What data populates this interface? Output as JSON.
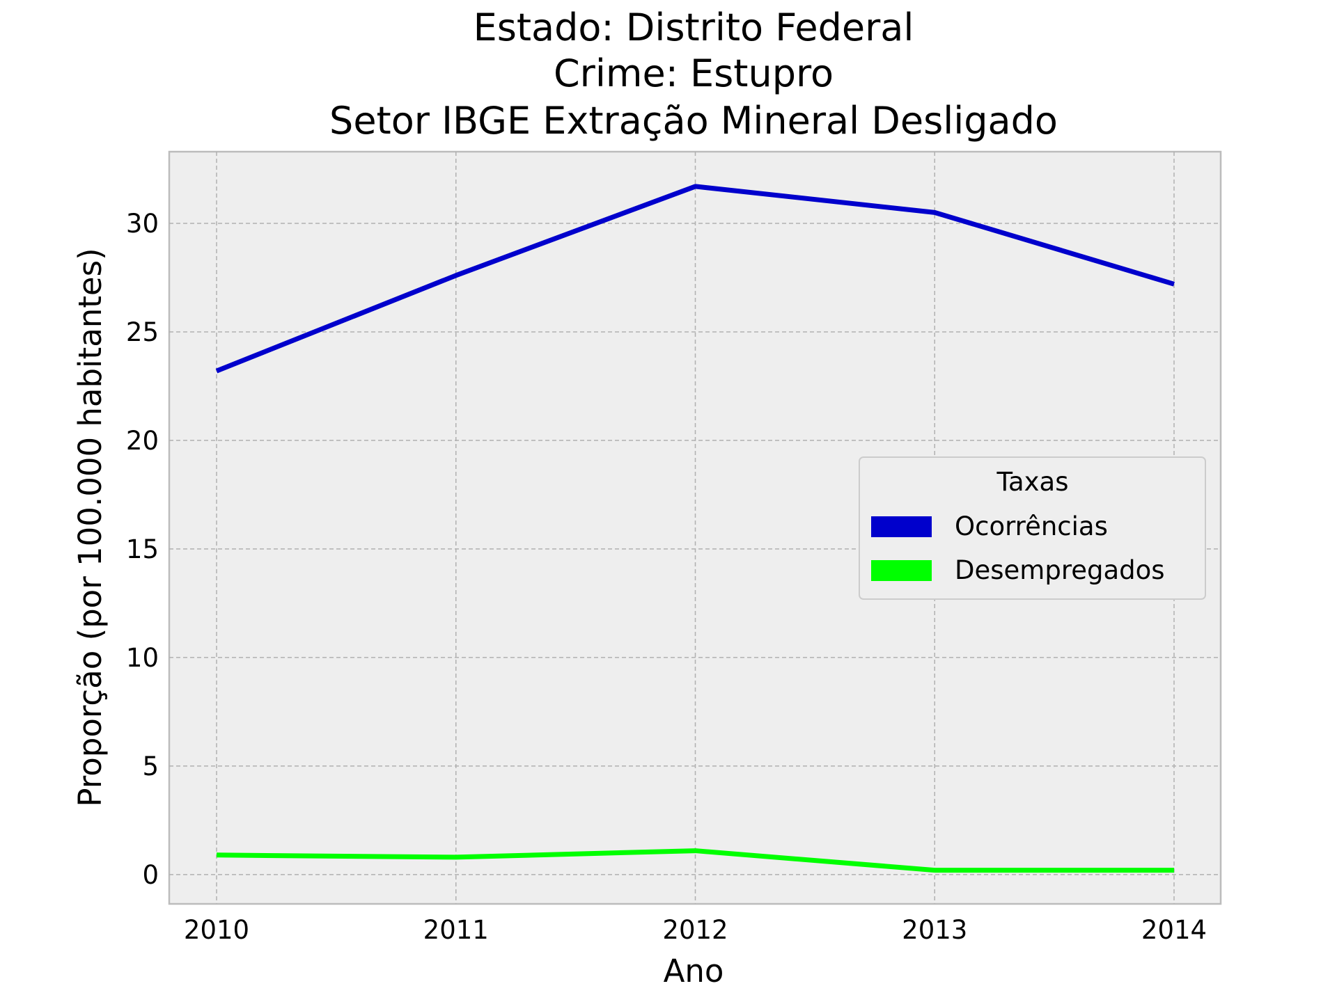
{
  "chart_data": {
    "type": "line",
    "title_lines": [
      "Estado: Distrito Federal",
      "Crime: Estupro",
      "Setor IBGE  Extração Mineral   Desligado"
    ],
    "xlabel": "Ano",
    "ylabel": "Proporção (por 100.000 habitantes)",
    "x": [
      "2010",
      "2011",
      "2012",
      "2013",
      "2014"
    ],
    "y_ticks": [
      0,
      5,
      10,
      15,
      20,
      25,
      30
    ],
    "ylim": [
      -1.35,
      33.3
    ],
    "grid": true,
    "legend": {
      "title": "Taxas",
      "placement": "center-right"
    },
    "series": [
      {
        "name": "Ocorrências",
        "color": "#0000cc",
        "values": [
          23.2,
          27.6,
          31.7,
          30.5,
          27.2
        ]
      },
      {
        "name": "Desempregados",
        "color": "#00ff00",
        "values": [
          0.9,
          0.8,
          1.1,
          0.2,
          0.2
        ]
      }
    ]
  }
}
